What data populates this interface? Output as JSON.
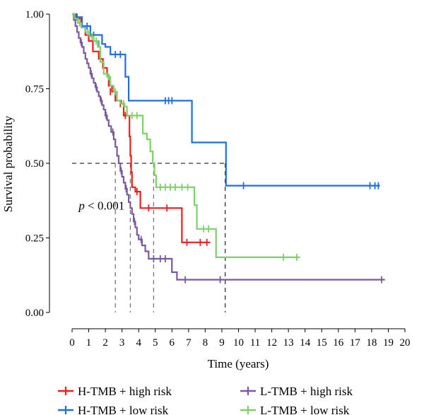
{
  "chart_data": {
    "type": "line",
    "subtype": "kaplan-meier",
    "title": "",
    "xlabel": "Time (years)",
    "ylabel": "Survival probability",
    "xlim": [
      0,
      20
    ],
    "ylim": [
      0,
      1
    ],
    "x_ticks": [
      "0",
      "1",
      "2",
      "3",
      "4",
      "5",
      "6",
      "7",
      "8",
      "9",
      "10",
      "11",
      "12",
      "13",
      "14",
      "15",
      "16",
      "17",
      "18",
      "19",
      "20"
    ],
    "y_ticks": [
      "0.00",
      "0.25",
      "0.50",
      "0.75",
      "1.00"
    ],
    "grid": false,
    "annotation": {
      "italic": "p",
      "rest": " < 0.001",
      "x": 0.4,
      "y": 0.345
    },
    "median_line": {
      "y": 0.5,
      "x_end": 9.2,
      "drops": [
        2.6,
        3.5,
        4.9,
        9.2
      ]
    },
    "legend_position": "bottom",
    "series": [
      {
        "name": "H-TMB + high risk",
        "color": "#ee1c1c",
        "steps": [
          [
            0,
            1.0
          ],
          [
            0.25,
            0.985
          ],
          [
            0.55,
            0.96
          ],
          [
            0.8,
            0.93
          ],
          [
            1.0,
            0.91
          ],
          [
            1.25,
            0.875
          ],
          [
            1.6,
            0.85
          ],
          [
            1.85,
            0.82
          ],
          [
            2.1,
            0.795
          ],
          [
            2.2,
            0.76
          ],
          [
            2.4,
            0.74
          ],
          [
            2.6,
            0.71
          ],
          [
            2.95,
            0.7
          ],
          [
            3.1,
            0.66
          ],
          [
            3.45,
            0.59
          ],
          [
            3.5,
            0.525
          ],
          [
            3.55,
            0.47
          ],
          [
            3.6,
            0.42
          ],
          [
            3.8,
            0.405
          ],
          [
            4.1,
            0.35
          ],
          [
            5.8,
            0.35
          ],
          [
            6.6,
            0.235
          ],
          [
            8.3,
            0.235
          ]
        ],
        "censor": [
          [
            2.3,
            0.74
          ],
          [
            2.9,
            0.7
          ],
          [
            3.2,
            0.66
          ],
          [
            3.9,
            0.405
          ],
          [
            4.6,
            0.35
          ],
          [
            5.7,
            0.35
          ],
          [
            6.9,
            0.235
          ],
          [
            7.7,
            0.235
          ],
          [
            8.1,
            0.235
          ]
        ]
      },
      {
        "name": "H-TMB + low risk",
        "color": "#1f6fe0",
        "steps": [
          [
            0,
            1.0
          ],
          [
            0.2,
            0.99
          ],
          [
            0.6,
            0.96
          ],
          [
            1.1,
            0.93
          ],
          [
            1.8,
            0.9
          ],
          [
            2.0,
            0.89
          ],
          [
            2.3,
            0.865
          ],
          [
            3.1,
            0.865
          ],
          [
            3.2,
            0.79
          ],
          [
            3.4,
            0.71
          ],
          [
            7.15,
            0.71
          ],
          [
            7.2,
            0.57
          ],
          [
            9.2,
            0.57
          ],
          [
            9.25,
            0.425
          ],
          [
            18.5,
            0.425
          ]
        ],
        "censor": [
          [
            0.3,
            0.99
          ],
          [
            0.9,
            0.96
          ],
          [
            1.3,
            0.93
          ],
          [
            1.6,
            0.9
          ],
          [
            2.6,
            0.865
          ],
          [
            2.9,
            0.865
          ],
          [
            5.6,
            0.71
          ],
          [
            5.8,
            0.71
          ],
          [
            6.0,
            0.71
          ],
          [
            10.3,
            0.425
          ],
          [
            17.9,
            0.425
          ],
          [
            18.2,
            0.425
          ],
          [
            18.4,
            0.425
          ]
        ]
      },
      {
        "name": "L-TMB + high risk",
        "color": "#7a5a9c",
        "steps": [
          [
            0,
            1.0
          ],
          [
            0.1,
            0.98
          ],
          [
            0.2,
            0.96
          ],
          [
            0.3,
            0.94
          ],
          [
            0.4,
            0.92
          ],
          [
            0.5,
            0.905
          ],
          [
            0.6,
            0.89
          ],
          [
            0.7,
            0.87
          ],
          [
            0.8,
            0.85
          ],
          [
            0.9,
            0.835
          ],
          [
            1.0,
            0.82
          ],
          [
            1.1,
            0.8
          ],
          [
            1.2,
            0.785
          ],
          [
            1.3,
            0.77
          ],
          [
            1.4,
            0.755
          ],
          [
            1.5,
            0.74
          ],
          [
            1.6,
            0.725
          ],
          [
            1.7,
            0.71
          ],
          [
            1.8,
            0.695
          ],
          [
            1.9,
            0.68
          ],
          [
            2.0,
            0.66
          ],
          [
            2.1,
            0.645
          ],
          [
            2.2,
            0.625
          ],
          [
            2.35,
            0.605
          ],
          [
            2.5,
            0.58
          ],
          [
            2.6,
            0.555
          ],
          [
            2.7,
            0.525
          ],
          [
            2.8,
            0.5
          ],
          [
            2.9,
            0.475
          ],
          [
            3.0,
            0.455
          ],
          [
            3.1,
            0.435
          ],
          [
            3.2,
            0.415
          ],
          [
            3.3,
            0.395
          ],
          [
            3.4,
            0.37
          ],
          [
            3.5,
            0.35
          ],
          [
            3.6,
            0.33
          ],
          [
            3.7,
            0.305
          ],
          [
            3.8,
            0.285
          ],
          [
            3.9,
            0.26
          ],
          [
            4.0,
            0.245
          ],
          [
            4.2,
            0.225
          ],
          [
            4.4,
            0.205
          ],
          [
            4.6,
            0.18
          ],
          [
            5.9,
            0.18
          ],
          [
            6.0,
            0.135
          ],
          [
            6.3,
            0.11
          ],
          [
            18.8,
            0.11
          ]
        ],
        "censor": [
          [
            0.55,
            0.905
          ],
          [
            1.15,
            0.8
          ],
          [
            1.45,
            0.755
          ],
          [
            1.75,
            0.71
          ],
          [
            2.05,
            0.66
          ],
          [
            2.45,
            0.605
          ],
          [
            2.95,
            0.475
          ],
          [
            3.25,
            0.415
          ],
          [
            3.75,
            0.305
          ],
          [
            4.15,
            0.245
          ],
          [
            4.9,
            0.18
          ],
          [
            5.3,
            0.18
          ],
          [
            5.6,
            0.18
          ],
          [
            6.8,
            0.11
          ],
          [
            8.9,
            0.11
          ],
          [
            18.6,
            0.11
          ]
        ]
      },
      {
        "name": "L-TMB + low risk",
        "color": "#7fcf6a",
        "steps": [
          [
            0,
            1.0
          ],
          [
            0.15,
            0.985
          ],
          [
            0.35,
            0.97
          ],
          [
            0.55,
            0.955
          ],
          [
            0.8,
            0.94
          ],
          [
            1.05,
            0.925
          ],
          [
            1.3,
            0.91
          ],
          [
            1.55,
            0.89
          ],
          [
            1.7,
            0.84
          ],
          [
            1.9,
            0.8
          ],
          [
            2.1,
            0.79
          ],
          [
            2.3,
            0.76
          ],
          [
            2.5,
            0.74
          ],
          [
            2.7,
            0.71
          ],
          [
            2.9,
            0.7
          ],
          [
            3.15,
            0.69
          ],
          [
            3.3,
            0.66
          ],
          [
            4.1,
            0.66
          ],
          [
            4.25,
            0.6
          ],
          [
            4.5,
            0.58
          ],
          [
            4.7,
            0.54
          ],
          [
            4.85,
            0.5
          ],
          [
            4.95,
            0.46
          ],
          [
            5.05,
            0.42
          ],
          [
            7.2,
            0.42
          ],
          [
            7.35,
            0.36
          ],
          [
            7.5,
            0.28
          ],
          [
            8.6,
            0.28
          ],
          [
            8.65,
            0.185
          ],
          [
            13.7,
            0.185
          ]
        ],
        "censor": [
          [
            0.45,
            0.97
          ],
          [
            0.95,
            0.94
          ],
          [
            1.2,
            0.925
          ],
          [
            1.45,
            0.91
          ],
          [
            2.2,
            0.79
          ],
          [
            2.6,
            0.74
          ],
          [
            3.1,
            0.7
          ],
          [
            3.6,
            0.66
          ],
          [
            3.9,
            0.66
          ],
          [
            5.3,
            0.42
          ],
          [
            5.6,
            0.42
          ],
          [
            5.9,
            0.42
          ],
          [
            6.2,
            0.42
          ],
          [
            6.6,
            0.42
          ],
          [
            6.95,
            0.42
          ],
          [
            7.9,
            0.28
          ],
          [
            8.2,
            0.28
          ],
          [
            12.7,
            0.185
          ],
          [
            13.5,
            0.185
          ]
        ]
      }
    ],
    "legend": [
      {
        "label": "H-TMB + high risk",
        "color": "#ee1c1c"
      },
      {
        "label": "L-TMB + high risk",
        "color": "#7a5a9c"
      },
      {
        "label": "H-TMB + low risk",
        "color": "#1f6fe0"
      },
      {
        "label": "L-TMB + low risk",
        "color": "#7fcf6a"
      }
    ]
  }
}
